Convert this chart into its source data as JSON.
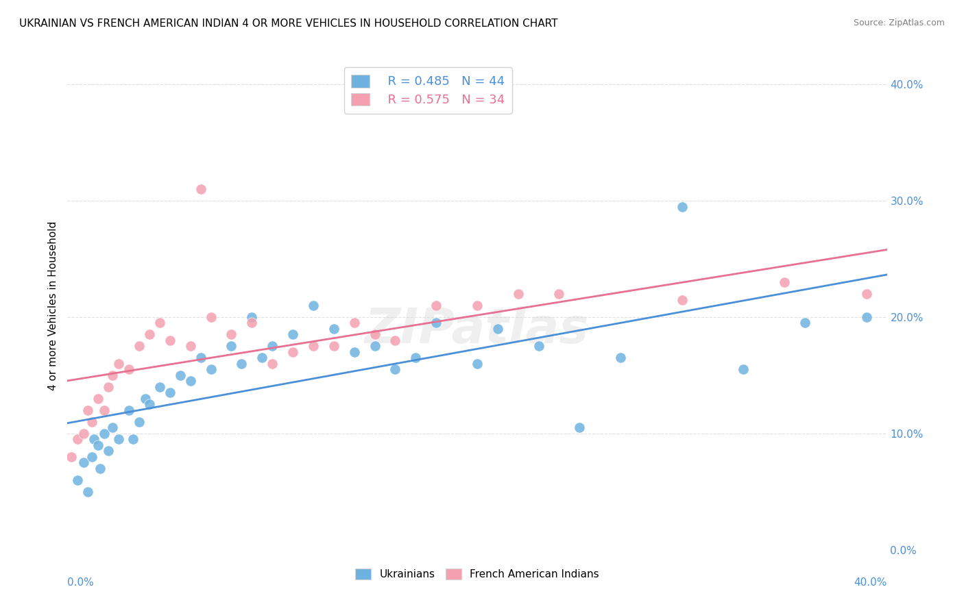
{
  "title": "UKRAINIAN VS FRENCH AMERICAN INDIAN 4 OR MORE VEHICLES IN HOUSEHOLD CORRELATION CHART",
  "source": "Source: ZipAtlas.com",
  "ylabel": "4 or more Vehicles in Household",
  "xlim": [
    0.0,
    0.4
  ],
  "ylim": [
    0.0,
    0.42
  ],
  "legend_blue_r": "R = 0.485",
  "legend_blue_n": "N = 44",
  "legend_pink_r": "R = 0.575",
  "legend_pink_n": "N = 34",
  "blue_color": "#6eb3e0",
  "pink_color": "#f4a0b0",
  "blue_line_color": "#4a90d9",
  "pink_line_color": "#e87090",
  "legend_blue_text_color": "#4a90d9",
  "legend_pink_text_color": "#e87090",
  "blue_scatter_x": [
    0.005,
    0.008,
    0.01,
    0.012,
    0.013,
    0.015,
    0.016,
    0.018,
    0.02,
    0.022,
    0.025,
    0.03,
    0.032,
    0.035,
    0.038,
    0.04,
    0.045,
    0.05,
    0.055,
    0.06,
    0.065,
    0.07,
    0.08,
    0.085,
    0.09,
    0.095,
    0.1,
    0.11,
    0.12,
    0.13,
    0.14,
    0.15,
    0.16,
    0.17,
    0.18,
    0.2,
    0.21,
    0.23,
    0.25,
    0.27,
    0.3,
    0.33,
    0.36,
    0.39
  ],
  "blue_scatter_y": [
    0.06,
    0.075,
    0.05,
    0.08,
    0.095,
    0.09,
    0.07,
    0.1,
    0.085,
    0.105,
    0.095,
    0.12,
    0.095,
    0.11,
    0.13,
    0.125,
    0.14,
    0.135,
    0.15,
    0.145,
    0.165,
    0.155,
    0.175,
    0.16,
    0.2,
    0.165,
    0.175,
    0.185,
    0.21,
    0.19,
    0.17,
    0.175,
    0.155,
    0.165,
    0.195,
    0.16,
    0.19,
    0.175,
    0.105,
    0.165,
    0.295,
    0.155,
    0.195,
    0.2
  ],
  "pink_scatter_x": [
    0.002,
    0.005,
    0.008,
    0.01,
    0.012,
    0.015,
    0.018,
    0.02,
    0.022,
    0.025,
    0.03,
    0.035,
    0.04,
    0.045,
    0.05,
    0.06,
    0.065,
    0.07,
    0.08,
    0.09,
    0.1,
    0.11,
    0.12,
    0.13,
    0.14,
    0.15,
    0.16,
    0.18,
    0.2,
    0.22,
    0.24,
    0.3,
    0.35,
    0.39
  ],
  "pink_scatter_y": [
    0.08,
    0.095,
    0.1,
    0.12,
    0.11,
    0.13,
    0.12,
    0.14,
    0.15,
    0.16,
    0.155,
    0.175,
    0.185,
    0.195,
    0.18,
    0.175,
    0.31,
    0.2,
    0.185,
    0.195,
    0.16,
    0.17,
    0.175,
    0.175,
    0.195,
    0.185,
    0.18,
    0.21,
    0.21,
    0.22,
    0.22,
    0.215,
    0.23,
    0.22
  ],
  "watermark": "ZIPatlas",
  "background_color": "#ffffff",
  "grid_color": "#e0e0e0"
}
